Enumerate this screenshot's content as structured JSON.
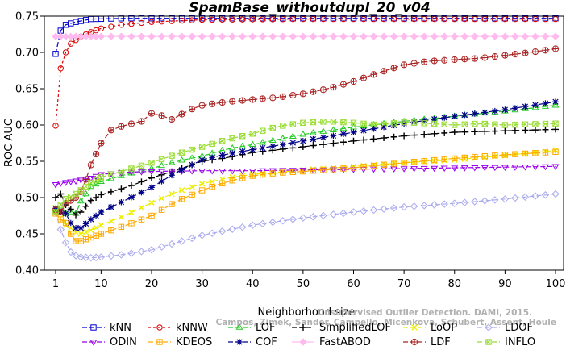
{
  "chart_data": {
    "type": "line",
    "title": "SpamBase_withoutdupl_20_v04",
    "xlabel": "Neighborhood size",
    "ylabel": "ROC AUC",
    "xlim": [
      1,
      100
    ],
    "ylim": [
      0.4,
      0.75
    ],
    "xticks": [
      1,
      10,
      20,
      30,
      40,
      50,
      60,
      70,
      80,
      90,
      100
    ],
    "xtick_labels": [
      "1",
      "10",
      "20",
      "30",
      "40",
      "50",
      "60",
      "70",
      "80",
      "90",
      "100"
    ],
    "yticks": [
      0.4,
      0.45,
      0.5,
      0.55,
      0.6,
      0.65,
      0.7,
      0.75
    ],
    "ytick_labels": [
      "0.40",
      "0.45",
      "0.50",
      "0.55",
      "0.60",
      "0.65",
      "0.70",
      "0.75"
    ],
    "grid": false,
    "legend_position": "bottom",
    "watermark": [
      "Unsupervised Outlier Detection. DAMI, 2015.",
      "Campos, Zimek, Sander, Campello, Micenkova, Schubert, Assent, Houle"
    ],
    "series": [
      {
        "name": "kNN",
        "color": "#0000cc",
        "marker": "square",
        "dash": "6,3",
        "points": [
          [
            1,
            0.698
          ],
          [
            2,
            0.73
          ],
          [
            3,
            0.738
          ],
          [
            5,
            0.742
          ],
          [
            8,
            0.746
          ],
          [
            15,
            0.747
          ],
          [
            30,
            0.747
          ],
          [
            60,
            0.747
          ],
          [
            100,
            0.747
          ]
        ]
      },
      {
        "name": "kNNW",
        "color": "#dd0000",
        "marker": "circle",
        "dash": "3,3",
        "points": [
          [
            1,
            0.599
          ],
          [
            2,
            0.678
          ],
          [
            3,
            0.7
          ],
          [
            4,
            0.712
          ],
          [
            6,
            0.722
          ],
          [
            8,
            0.728
          ],
          [
            10,
            0.733
          ],
          [
            14,
            0.738
          ],
          [
            20,
            0.742
          ],
          [
            30,
            0.745
          ],
          [
            50,
            0.746
          ],
          [
            100,
            0.746
          ]
        ]
      },
      {
        "name": "LOF",
        "color": "#22cc22",
        "marker": "triangle",
        "dash": "6,3",
        "points": [
          [
            1,
            0.483
          ],
          [
            2,
            0.487
          ],
          [
            3,
            0.478
          ],
          [
            4,
            0.48
          ],
          [
            5,
            0.478
          ],
          [
            6,
            0.495
          ],
          [
            8,
            0.515
          ],
          [
            10,
            0.522
          ],
          [
            15,
            0.532
          ],
          [
            20,
            0.54
          ],
          [
            25,
            0.55
          ],
          [
            30,
            0.557
          ],
          [
            35,
            0.567
          ],
          [
            40,
            0.573
          ],
          [
            50,
            0.587
          ],
          [
            60,
            0.597
          ],
          [
            70,
            0.605
          ],
          [
            80,
            0.612
          ],
          [
            90,
            0.619
          ],
          [
            100,
            0.627
          ]
        ]
      },
      {
        "name": "SimplifiedLOF",
        "color": "#000000",
        "marker": "plus",
        "dash": "6,3",
        "points": [
          [
            1,
            0.5
          ],
          [
            2,
            0.505
          ],
          [
            3,
            0.49
          ],
          [
            4,
            0.484
          ],
          [
            5,
            0.476
          ],
          [
            6,
            0.48
          ],
          [
            8,
            0.496
          ],
          [
            10,
            0.504
          ],
          [
            15,
            0.514
          ],
          [
            20,
            0.527
          ],
          [
            25,
            0.538
          ],
          [
            30,
            0.55
          ],
          [
            35,
            0.555
          ],
          [
            40,
            0.562
          ],
          [
            50,
            0.57
          ],
          [
            60,
            0.578
          ],
          [
            70,
            0.585
          ],
          [
            80,
            0.59
          ],
          [
            90,
            0.592
          ],
          [
            100,
            0.594
          ]
        ]
      },
      {
        "name": "LoOP",
        "color": "#eeee00",
        "marker": "x",
        "dash": "6,3",
        "points": [
          [
            1,
            0.486
          ],
          [
            2,
            0.48
          ],
          [
            3,
            0.462
          ],
          [
            4,
            0.458
          ],
          [
            5,
            0.452
          ],
          [
            6,
            0.45
          ],
          [
            8,
            0.455
          ],
          [
            10,
            0.462
          ],
          [
            15,
            0.476
          ],
          [
            20,
            0.493
          ],
          [
            25,
            0.508
          ],
          [
            30,
            0.519
          ],
          [
            35,
            0.527
          ],
          [
            40,
            0.532
          ],
          [
            50,
            0.538
          ],
          [
            60,
            0.543
          ],
          [
            70,
            0.548
          ],
          [
            80,
            0.552
          ],
          [
            90,
            0.558
          ],
          [
            100,
            0.565
          ]
        ]
      },
      {
        "name": "LDOF",
        "color": "#aaaaee",
        "marker": "diamond",
        "dash": "6,3",
        "points": [
          [
            1,
            0.48
          ],
          [
            2,
            0.456
          ],
          [
            3,
            0.438
          ],
          [
            4,
            0.425
          ],
          [
            5,
            0.42
          ],
          [
            6,
            0.418
          ],
          [
            8,
            0.417
          ],
          [
            10,
            0.418
          ],
          [
            15,
            0.422
          ],
          [
            20,
            0.428
          ],
          [
            25,
            0.438
          ],
          [
            30,
            0.448
          ],
          [
            40,
            0.462
          ],
          [
            50,
            0.472
          ],
          [
            60,
            0.48
          ],
          [
            70,
            0.487
          ],
          [
            80,
            0.492
          ],
          [
            90,
            0.498
          ],
          [
            100,
            0.505
          ]
        ]
      },
      {
        "name": "ODIN",
        "color": "#9900ee",
        "marker": "triangle-down",
        "dash": "6,3",
        "points": [
          [
            1,
            0.518
          ],
          [
            2,
            0.52
          ],
          [
            3,
            0.521
          ],
          [
            5,
            0.523
          ],
          [
            8,
            0.527
          ],
          [
            10,
            0.532
          ],
          [
            15,
            0.535
          ],
          [
            20,
            0.536
          ],
          [
            30,
            0.537
          ],
          [
            40,
            0.537
          ],
          [
            50,
            0.538
          ],
          [
            60,
            0.539
          ],
          [
            70,
            0.54
          ],
          [
            80,
            0.541
          ],
          [
            90,
            0.542
          ],
          [
            100,
            0.543
          ]
        ]
      },
      {
        "name": "KDEOS",
        "color": "#ffaa00",
        "marker": "square-cross",
        "dash": "6,3",
        "points": [
          [
            1,
            0.478
          ],
          [
            2,
            0.47
          ],
          [
            3,
            0.465
          ],
          [
            4,
            0.45
          ],
          [
            5,
            0.44
          ],
          [
            6,
            0.44
          ],
          [
            8,
            0.445
          ],
          [
            10,
            0.45
          ],
          [
            15,
            0.462
          ],
          [
            20,
            0.475
          ],
          [
            25,
            0.495
          ],
          [
            30,
            0.51
          ],
          [
            35,
            0.522
          ],
          [
            40,
            0.53
          ],
          [
            45,
            0.534
          ],
          [
            50,
            0.536
          ],
          [
            60,
            0.541
          ],
          [
            70,
            0.548
          ],
          [
            80,
            0.554
          ],
          [
            90,
            0.559
          ],
          [
            100,
            0.563
          ]
        ]
      },
      {
        "name": "COF",
        "color": "#000088",
        "marker": "star",
        "dash": "6,3",
        "points": [
          [
            1,
            0.485
          ],
          [
            2,
            0.48
          ],
          [
            3,
            0.478
          ],
          [
            4,
            0.465
          ],
          [
            5,
            0.458
          ],
          [
            6,
            0.458
          ],
          [
            8,
            0.47
          ],
          [
            10,
            0.48
          ],
          [
            15,
            0.497
          ],
          [
            20,
            0.514
          ],
          [
            25,
            0.535
          ],
          [
            30,
            0.552
          ],
          [
            35,
            0.56
          ],
          [
            40,
            0.566
          ],
          [
            50,
            0.578
          ],
          [
            60,
            0.59
          ],
          [
            70,
            0.602
          ],
          [
            80,
            0.612
          ],
          [
            90,
            0.621
          ],
          [
            100,
            0.632
          ]
        ]
      },
      {
        "name": "FastABOD",
        "color": "#ffbbee",
        "marker": "diamond-filled",
        "dash": "none",
        "points": [
          [
            1,
            0.722
          ],
          [
            10,
            0.722
          ],
          [
            20,
            0.722
          ],
          [
            30,
            0.722
          ],
          [
            40,
            0.722
          ],
          [
            50,
            0.722
          ],
          [
            60,
            0.722
          ],
          [
            70,
            0.722
          ],
          [
            80,
            0.722
          ],
          [
            90,
            0.722
          ],
          [
            100,
            0.722
          ]
        ]
      },
      {
        "name": "LDF",
        "color": "#aa2222",
        "marker": "circle-plus",
        "dash": "6,3",
        "points": [
          [
            1,
            0.483
          ],
          [
            2,
            0.48
          ],
          [
            3,
            0.492
          ],
          [
            4,
            0.496
          ],
          [
            5,
            0.5
          ],
          [
            6,
            0.508
          ],
          [
            7,
            0.525
          ],
          [
            8,
            0.545
          ],
          [
            9,
            0.56
          ],
          [
            10,
            0.575
          ],
          [
            11,
            0.59
          ],
          [
            13,
            0.596
          ],
          [
            15,
            0.6
          ],
          [
            18,
            0.605
          ],
          [
            20,
            0.616
          ],
          [
            22,
            0.613
          ],
          [
            25,
            0.605
          ],
          [
            26,
            0.615
          ],
          [
            28,
            0.622
          ],
          [
            30,
            0.627
          ],
          [
            35,
            0.632
          ],
          [
            40,
            0.635
          ],
          [
            45,
            0.638
          ],
          [
            50,
            0.643
          ],
          [
            55,
            0.65
          ],
          [
            60,
            0.66
          ],
          [
            65,
            0.672
          ],
          [
            70,
            0.683
          ],
          [
            75,
            0.688
          ],
          [
            80,
            0.69
          ],
          [
            85,
            0.692
          ],
          [
            90,
            0.696
          ],
          [
            95,
            0.7
          ],
          [
            100,
            0.705
          ]
        ]
      },
      {
        "name": "INFLO",
        "color": "#99dd33",
        "marker": "square-x",
        "dash": "6,3",
        "points": [
          [
            1,
            0.48
          ],
          [
            2,
            0.49
          ],
          [
            3,
            0.498
          ],
          [
            5,
            0.505
          ],
          [
            8,
            0.52
          ],
          [
            10,
            0.528
          ],
          [
            15,
            0.538
          ],
          [
            20,
            0.548
          ],
          [
            25,
            0.56
          ],
          [
            30,
            0.57
          ],
          [
            35,
            0.58
          ],
          [
            40,
            0.588
          ],
          [
            45,
            0.598
          ],
          [
            50,
            0.603
          ],
          [
            55,
            0.605
          ],
          [
            60,
            0.603
          ],
          [
            65,
            0.6
          ],
          [
            70,
            0.604
          ],
          [
            75,
            0.602
          ],
          [
            80,
            0.6
          ],
          [
            85,
            0.602
          ],
          [
            90,
            0.6
          ],
          [
            95,
            0.601
          ],
          [
            100,
            0.602
          ]
        ]
      }
    ]
  }
}
